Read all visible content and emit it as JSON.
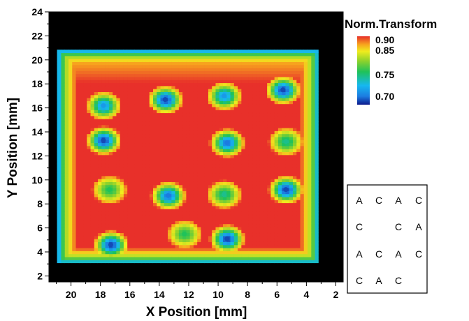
{
  "chart_data": {
    "type": "heatmap",
    "title": "",
    "xlabel": "X Position [mm]",
    "ylabel": "Y Position [mm]",
    "xlim": [
      21.5,
      1.5
    ],
    "ylim": [
      1.5,
      24
    ],
    "x_reversed": true,
    "x_ticks": [
      20,
      18,
      16,
      14,
      12,
      10,
      8,
      6,
      4,
      2
    ],
    "y_ticks": [
      2,
      4,
      6,
      8,
      10,
      12,
      14,
      16,
      18,
      20,
      22,
      24
    ],
    "background_color": "#000000",
    "colorbar": {
      "title": "Norm.Transform",
      "ticks": [
        {
          "value": 0.9,
          "label": "0.90"
        },
        {
          "value": 0.85,
          "label": "0.85"
        },
        {
          "value": 0.75,
          "label": "0.75"
        },
        {
          "value": 0.7,
          "label": "0.70"
        }
      ],
      "colors": [
        "#0d1a8c",
        "#1c7be0",
        "#16b8f0",
        "#1fc25a",
        "#8ed22c",
        "#f0ec1e",
        "#f7a41e",
        "#e8302a"
      ]
    },
    "plate": {
      "x_range": [
        20.9,
        3.2
      ],
      "y_range": [
        3.1,
        20.8
      ],
      "base_value": 0.9
    },
    "wells": [
      {
        "x": 17.8,
        "y": 16.2,
        "min": 0.71
      },
      {
        "x": 13.6,
        "y": 16.7,
        "min": 0.69
      },
      {
        "x": 9.6,
        "y": 17.0,
        "min": 0.71
      },
      {
        "x": 5.6,
        "y": 17.5,
        "min": 0.69
      },
      {
        "x": 17.8,
        "y": 13.3,
        "min": 0.69
      },
      {
        "x": 9.4,
        "y": 13.1,
        "min": 0.7
      },
      {
        "x": 5.4,
        "y": 13.2,
        "min": 0.74
      },
      {
        "x": 17.4,
        "y": 9.2,
        "min": 0.75
      },
      {
        "x": 13.4,
        "y": 8.7,
        "min": 0.7
      },
      {
        "x": 9.6,
        "y": 8.8,
        "min": 0.74
      },
      {
        "x": 5.4,
        "y": 9.2,
        "min": 0.69
      },
      {
        "x": 17.3,
        "y": 4.6,
        "min": 0.69
      },
      {
        "x": 12.3,
        "y": 5.5,
        "min": 0.75
      },
      {
        "x": 9.4,
        "y": 5.1,
        "min": 0.69
      }
    ]
  },
  "layout_key": {
    "rows": [
      [
        "A",
        "C",
        "A",
        "C"
      ],
      [
        "C",
        "",
        "C",
        "A"
      ],
      [
        "A",
        "C",
        "A",
        "C"
      ],
      [
        "C",
        "A",
        "C",
        ""
      ]
    ]
  }
}
